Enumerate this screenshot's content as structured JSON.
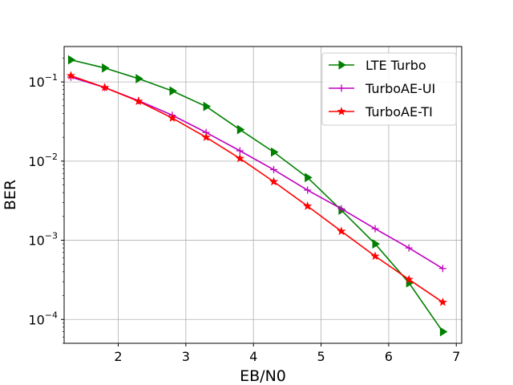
{
  "chart_data": {
    "type": "line",
    "title": "",
    "xlabel": "EB/N0",
    "ylabel": "BER",
    "xlim": [
      1.2,
      7.08
    ],
    "ylim": [
      5e-05,
      0.28
    ],
    "yscale": "log",
    "grid": true,
    "legend_position": "top-right",
    "x_ticks": [
      2,
      3,
      4,
      5,
      6,
      7
    ],
    "y_ticks": [
      {
        "value": 0.0001,
        "base": "10",
        "exp": "−4"
      },
      {
        "value": 0.001,
        "base": "10",
        "exp": "−3"
      },
      {
        "value": 0.01,
        "base": "10",
        "exp": "−2"
      },
      {
        "value": 0.1,
        "base": "10",
        "exp": "−1"
      }
    ],
    "series": [
      {
        "name": "LTE Turbo",
        "color": "#008000",
        "marker": "triangle-right",
        "x": [
          1.3,
          1.8,
          2.3,
          2.8,
          3.3,
          3.8,
          4.3,
          4.8,
          5.3,
          5.8,
          6.3,
          6.8
        ],
        "y": [
          0.19,
          0.15,
          0.11,
          0.077,
          0.049,
          0.025,
          0.013,
          0.0062,
          0.0024,
          0.0009,
          0.00029,
          7e-05
        ]
      },
      {
        "name": "TurboAE-UI",
        "color": "#bf00bf",
        "marker": "plus",
        "x": [
          1.3,
          1.8,
          2.3,
          2.8,
          3.3,
          3.8,
          4.3,
          4.8,
          5.3,
          5.8,
          6.3,
          6.8
        ],
        "y": [
          0.115,
          0.085,
          0.058,
          0.038,
          0.023,
          0.0135,
          0.0078,
          0.0043,
          0.0025,
          0.0014,
          0.0008,
          0.00044
        ]
      },
      {
        "name": "TurboAE-TI",
        "color": "#ff0000",
        "marker": "star",
        "x": [
          1.3,
          1.8,
          2.3,
          2.8,
          3.3,
          3.8,
          4.3,
          4.8,
          5.3,
          5.8,
          6.3,
          6.8
        ],
        "y": [
          0.12,
          0.085,
          0.057,
          0.035,
          0.02,
          0.0108,
          0.0055,
          0.0027,
          0.0013,
          0.00063,
          0.00032,
          0.000165
        ]
      }
    ]
  }
}
